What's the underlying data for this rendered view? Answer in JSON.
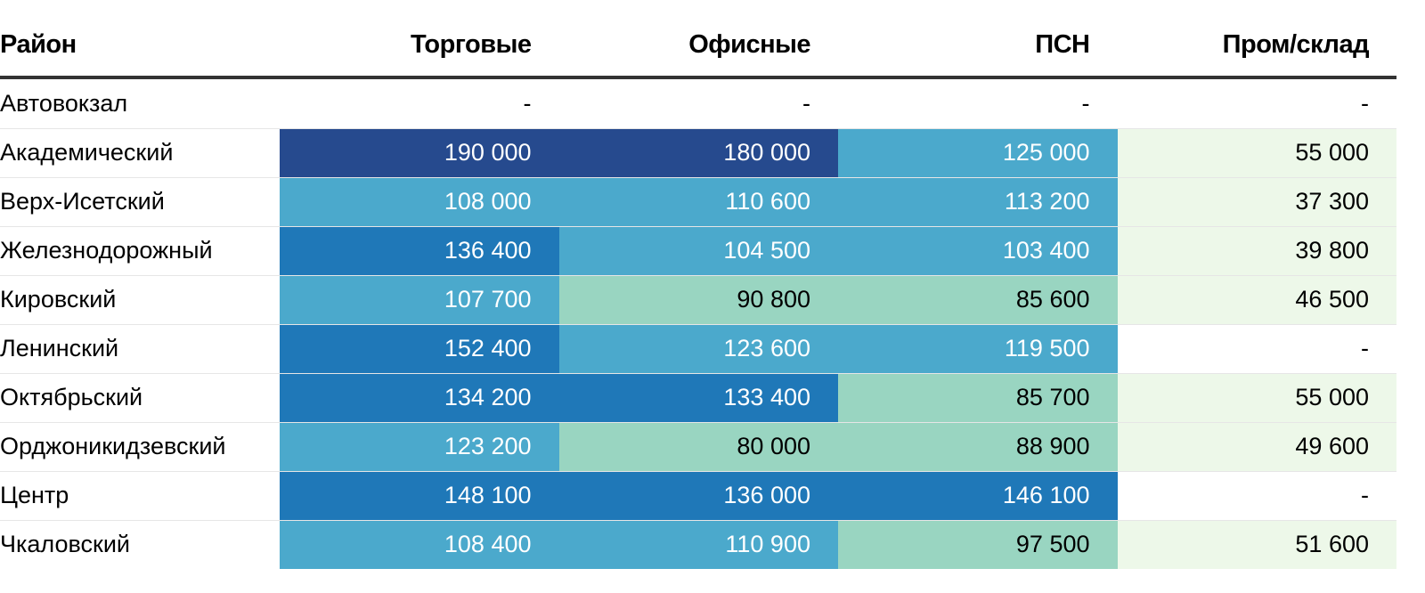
{
  "chart_data": {
    "type": "table",
    "columns": [
      "Район",
      "Торговые",
      "Офисные",
      "ПСН",
      "Пром/склад"
    ],
    "rows": [
      {
        "district": "Автовокзал",
        "values": [
          "-",
          "-",
          "-",
          "-"
        ]
      },
      {
        "district": "Академический",
        "values": [
          "190 000",
          "180 000",
          "125 000",
          "55 000"
        ]
      },
      {
        "district": "Верх-Исетский",
        "values": [
          "108 000",
          "110 600",
          "113 200",
          "37 300"
        ]
      },
      {
        "district": "Железнодорожный",
        "values": [
          "136 400",
          "104 500",
          "103 400",
          "39 800"
        ]
      },
      {
        "district": "Кировский",
        "values": [
          "107 700",
          "90 800",
          "85 600",
          "46 500"
        ]
      },
      {
        "district": "Ленинский",
        "values": [
          "152 400",
          "123 600",
          "119 500",
          "-"
        ]
      },
      {
        "district": "Октябрьский",
        "values": [
          "134 200",
          "133 400",
          "85 700",
          "55 000"
        ]
      },
      {
        "district": "Орджоникидзевский",
        "values": [
          "123 200",
          "80 000",
          "88 900",
          "49 600"
        ]
      },
      {
        "district": "Центр",
        "values": [
          "148 100",
          "136 000",
          "146 100",
          "-"
        ]
      },
      {
        "district": "Чкаловский",
        "values": [
          "108 400",
          "110 900",
          "97 500",
          "51 600"
        ]
      }
    ]
  },
  "colors": {
    "header_rule": "#333333",
    "row_divider": "#e6e6e6",
    "scale": [
      "#edf8e9",
      "#99d5c1",
      "#4ba9cc",
      "#1f78b8",
      "#264a8e"
    ],
    "text_dark": "#000000",
    "text_light": "#ffffff"
  }
}
